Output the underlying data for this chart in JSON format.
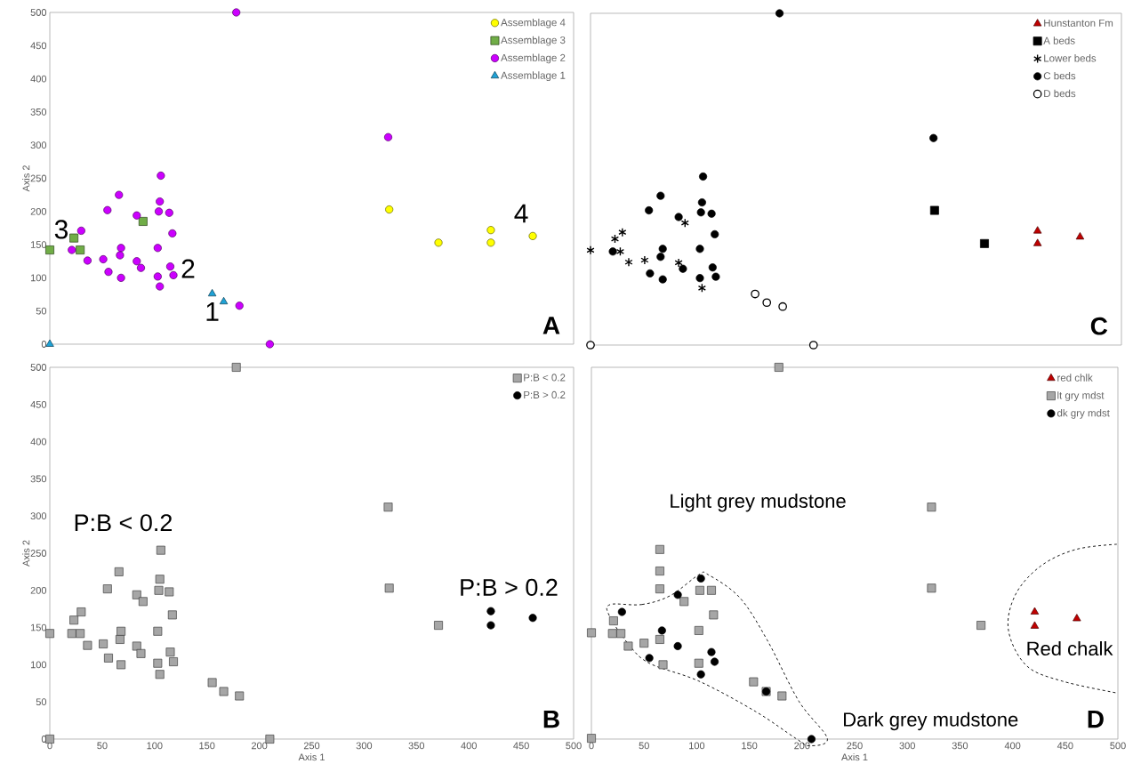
{
  "chart_data": [
    {
      "type": "scatter",
      "ylabel": "Axis 2",
      "xlim": [
        0,
        500
      ],
      "ylim": [
        0,
        500
      ],
      "yticks": [
        0,
        50,
        100,
        150,
        200,
        250,
        300,
        350,
        400,
        450,
        500
      ],
      "tick_labels": "y",
      "legend": "top right",
      "series": [
        {
          "name": "Assemblage 4",
          "color": "#ffff00",
          "marker": "circle",
          "x": [
            324,
            371,
            421,
            421,
            461
          ],
          "values": [
            203,
            153,
            172,
            153,
            163
          ]
        },
        {
          "name": "Assemblage 3",
          "color": "#70ad47",
          "marker": "square",
          "x": [
            0,
            23,
            29,
            89
          ],
          "values": [
            142,
            160,
            142,
            185
          ]
        },
        {
          "name": "Assemblage 2",
          "color": "#cc00ff",
          "marker": "circle",
          "x": [
            178,
            21,
            30,
            36,
            51,
            55,
            56,
            66,
            68,
            67,
            68,
            83,
            83,
            87,
            106,
            105,
            104,
            114,
            117,
            103,
            115,
            118,
            103,
            105,
            181,
            210,
            323
          ],
          "values": [
            500,
            142,
            171,
            126,
            128,
            202,
            109,
            225,
            145,
            134,
            100,
            194,
            125,
            115,
            254,
            215,
            200,
            198,
            167,
            145,
            117,
            104,
            102,
            87,
            58,
            0,
            312
          ]
        },
        {
          "name": "Assemblage 1",
          "color": "#1fa2d6",
          "marker": "triangle",
          "x": [
            0,
            155,
            166
          ],
          "values": [
            0,
            76,
            64
          ]
        }
      ],
      "annotations": [
        "A",
        "1",
        "2",
        "3",
        "4"
      ]
    },
    {
      "type": "scatter",
      "xlim": [
        0,
        500
      ],
      "ylim": [
        0,
        500
      ],
      "tick_labels": false,
      "legend": "top right",
      "series": [
        {
          "name": "Hunstanton Fm",
          "color": "#c00000",
          "marker": "triangle",
          "x": [
            421,
            421,
            461
          ],
          "values": [
            172,
            153,
            163
          ]
        },
        {
          "name": "A beds",
          "color": "#000000",
          "marker": "square",
          "x": [
            324,
            371
          ],
          "values": [
            203,
            153
          ]
        },
        {
          "name": "Lower beds",
          "color": "#000000",
          "marker": "cross",
          "x": [
            0,
            23,
            30,
            28,
            36,
            51,
            83,
            89,
            105
          ],
          "values": [
            143,
            160,
            170,
            141,
            125,
            128,
            124,
            184,
            86
          ]
        },
        {
          "name": "C beds",
          "color": "#000000",
          "marker": "circle",
          "x": [
            178,
            323,
            106,
            66,
            55,
            83,
            105,
            104,
            114,
            117,
            21,
            68,
            66,
            103,
            56,
            68,
            87,
            115,
            118,
            103
          ],
          "values": [
            500,
            312,
            254,
            225,
            203,
            193,
            215,
            200,
            198,
            167,
            141,
            145,
            133,
            145,
            108,
            99,
            115,
            117,
            103,
            101
          ]
        },
        {
          "name": "D beds",
          "color": "#ffffff",
          "marker": "circle",
          "x": [
            0,
            210,
            155,
            166,
            181
          ],
          "values": [
            0,
            0,
            77,
            64,
            58
          ]
        }
      ],
      "annotations": [
        "C"
      ]
    },
    {
      "type": "scatter",
      "xlabel": "Axis 1",
      "ylabel": "Axis 2",
      "xlim": [
        0,
        500
      ],
      "ylim": [
        0,
        500
      ],
      "xticks": [
        0,
        50,
        100,
        150,
        200,
        250,
        300,
        350,
        400,
        450,
        500
      ],
      "yticks": [
        0,
        50,
        100,
        150,
        200,
        250,
        300,
        350,
        400,
        450,
        500
      ],
      "legend": "top right",
      "series": [
        {
          "name": "P:B < 0.2",
          "color": "#a6a6a6",
          "marker": "square",
          "x": [
            0,
            0,
            21,
            23,
            29,
            30,
            36,
            51,
            55,
            56,
            66,
            67,
            68,
            68,
            83,
            83,
            87,
            89,
            103,
            103,
            104,
            105,
            105,
            106,
            114,
            115,
            117,
            118,
            155,
            166,
            178,
            181,
            210,
            323,
            324,
            371
          ],
          "values": [
            0,
            142,
            142,
            160,
            142,
            171,
            126,
            128,
            202,
            109,
            225,
            134,
            145,
            100,
            194,
            125,
            115,
            185,
            145,
            102,
            200,
            215,
            87,
            254,
            198,
            117,
            167,
            104,
            76,
            64,
            500,
            58,
            0,
            312,
            203,
            153
          ]
        },
        {
          "name": "P:B > 0.2",
          "color": "#000000",
          "marker": "circle",
          "x": [
            421,
            421,
            461
          ],
          "values": [
            172,
            153,
            163
          ]
        }
      ],
      "annotations": [
        "B",
        "P:B < 0.2",
        "P:B > 0.2"
      ]
    },
    {
      "type": "scatter",
      "xlabel": "Axis 1",
      "xlim": [
        0,
        500
      ],
      "ylim": [
        0,
        500
      ],
      "xticks": [
        0,
        50,
        100,
        150,
        200,
        250,
        300,
        350,
        400,
        450,
        500
      ],
      "tick_labels": "x",
      "legend": "top right",
      "series": [
        {
          "name": "red chlk",
          "color": "#c00000",
          "marker": "triangle",
          "x": [
            421,
            421,
            461
          ],
          "values": [
            171,
            152,
            162
          ]
        },
        {
          "name": "lt gry mdst",
          "color": "#a6a6a6",
          "marker": "square",
          "x": [
            178,
            323,
            323,
            370,
            0,
            0,
            21,
            20,
            28,
            35,
            50,
            65,
            65,
            65,
            65,
            68,
            88,
            103,
            114,
            116,
            102,
            102,
            154,
            166,
            181
          ],
          "values": [
            500,
            312,
            203,
            153,
            1,
            143,
            159,
            142,
            142,
            125,
            129,
            255,
            226,
            202,
            134,
            100,
            185,
            200,
            200,
            167,
            146,
            102,
            77,
            64,
            58
          ]
        },
        {
          "name": "dk gry mdst",
          "color": "#000000",
          "marker": "circle",
          "x": [
            29,
            82,
            104,
            67,
            82,
            55,
            114,
            117,
            104,
            166,
            209
          ],
          "values": [
            171,
            194,
            216,
            146,
            125,
            109,
            117,
            104,
            87,
            64,
            0
          ]
        }
      ],
      "annotations": [
        "D",
        "Light grey mudstone",
        "Dark grey mudstone",
        "Red chalk"
      ]
    }
  ]
}
